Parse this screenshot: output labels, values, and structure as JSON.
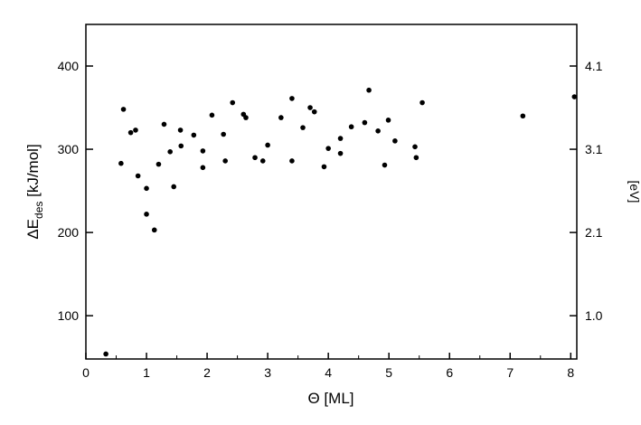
{
  "chart_data": {
    "type": "scatter",
    "title": "",
    "xlabel": "Θ [ML]",
    "ylabel_main": "ΔE",
    "ylabel_sub": "des",
    "ylabel_unit": " [kJ/mol]",
    "ylabel_right": "[eV]",
    "xlim": [
      0,
      8.1
    ],
    "ylim": [
      48,
      450
    ],
    "grid": false,
    "x_ticks": [
      0,
      1,
      2,
      3,
      4,
      5,
      6,
      7,
      8
    ],
    "y_ticks": [
      100,
      200,
      300,
      400
    ],
    "y_right_ticks": [
      {
        "at": 400,
        "label": "4.1"
      },
      {
        "at": 300,
        "label": "3.1"
      },
      {
        "at": 200,
        "label": "2.1"
      },
      {
        "at": 100,
        "label": "1.0"
      }
    ],
    "marker_color": "#000000",
    "points": [
      [
        0.33,
        54
      ],
      [
        0.58,
        283
      ],
      [
        0.62,
        348
      ],
      [
        0.74,
        320
      ],
      [
        0.82,
        323
      ],
      [
        0.86,
        268
      ],
      [
        1.0,
        253
      ],
      [
        1.0,
        222
      ],
      [
        1.13,
        203
      ],
      [
        1.2,
        282
      ],
      [
        1.29,
        330
      ],
      [
        1.39,
        297
      ],
      [
        1.45,
        255
      ],
      [
        1.56,
        323
      ],
      [
        1.57,
        304
      ],
      [
        1.78,
        317
      ],
      [
        1.93,
        278
      ],
      [
        1.93,
        298
      ],
      [
        2.08,
        341
      ],
      [
        2.27,
        318
      ],
      [
        2.3,
        286
      ],
      [
        2.42,
        356
      ],
      [
        2.6,
        342
      ],
      [
        2.64,
        338
      ],
      [
        2.79,
        290
      ],
      [
        2.92,
        286
      ],
      [
        3.0,
        305
      ],
      [
        3.22,
        338
      ],
      [
        3.4,
        361
      ],
      [
        3.4,
        286
      ],
      [
        3.58,
        326
      ],
      [
        3.7,
        350
      ],
      [
        3.77,
        345
      ],
      [
        3.93,
        279
      ],
      [
        4.0,
        301
      ],
      [
        4.2,
        313
      ],
      [
        4.2,
        295
      ],
      [
        4.38,
        327
      ],
      [
        4.6,
        332
      ],
      [
        4.67,
        371
      ],
      [
        4.82,
        322
      ],
      [
        4.93,
        281
      ],
      [
        4.99,
        335
      ],
      [
        5.1,
        310
      ],
      [
        5.43,
        303
      ],
      [
        5.45,
        290
      ],
      [
        5.55,
        356
      ],
      [
        7.21,
        340
      ],
      [
        8.06,
        363
      ]
    ]
  }
}
